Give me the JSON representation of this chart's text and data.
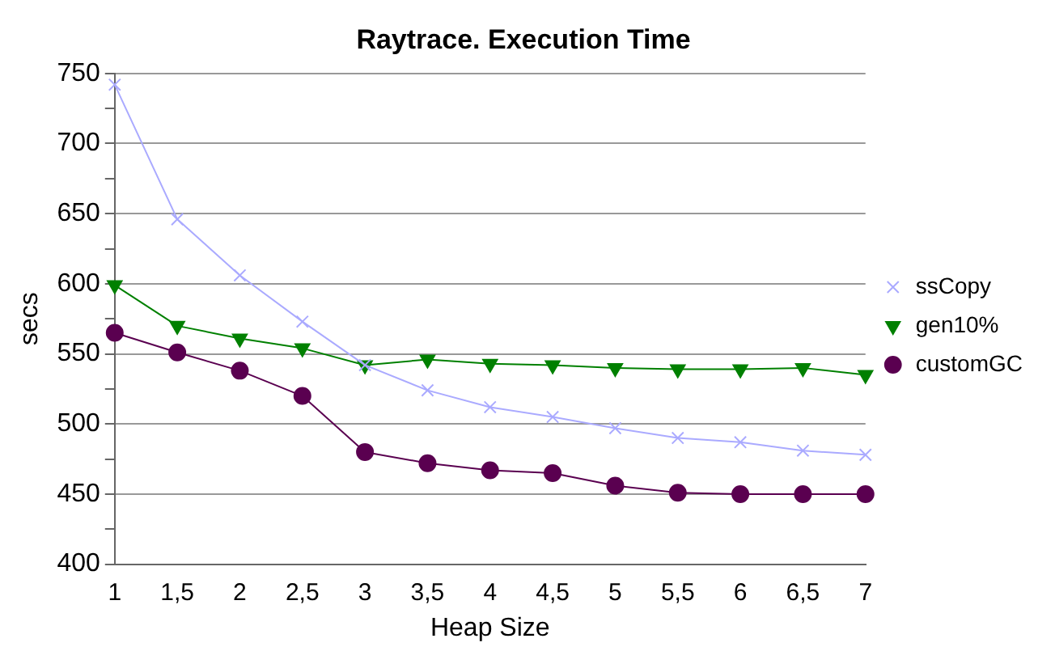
{
  "chart_data": {
    "type": "line",
    "title": "Raytrace. Execution Time",
    "xlabel": "Heap Size",
    "ylabel": "secs",
    "categories": [
      "1",
      "1,5",
      "2",
      "2,5",
      "3",
      "3,5",
      "4",
      "4,5",
      "5",
      "5,5",
      "6",
      "6,5",
      "7"
    ],
    "series": [
      {
        "name": "ssCopy",
        "color": "#aaaaff",
        "marker": "cross",
        "values": [
          742,
          646,
          606,
          573,
          542,
          524,
          512,
          505,
          497,
          490,
          487,
          481,
          478
        ]
      },
      {
        "name": "gen10%",
        "color": "#008000",
        "marker": "triangle",
        "values": [
          599,
          570,
          561,
          554,
          542,
          546,
          543,
          542,
          540,
          539,
          539,
          540,
          535
        ]
      },
      {
        "name": "customGC",
        "color": "#5a0050",
        "marker": "circle",
        "values": [
          565,
          551,
          538,
          520,
          480,
          472,
          467,
          465,
          456,
          451,
          450,
          450,
          450
        ]
      }
    ],
    "ylim": [
      400,
      750
    ],
    "yticks": [
      400,
      {
        "value": 425,
        "label": null
      },
      450,
      {
        "value": 475,
        "label": null
      },
      500,
      {
        "value": 525,
        "label": null
      },
      550,
      {
        "value": 575,
        "label": null
      },
      600,
      {
        "value": 625,
        "label": null
      },
      650,
      {
        "value": 675,
        "label": null
      },
      700,
      {
        "value": 725,
        "label": null
      },
      750
    ],
    "grid": "y",
    "legend": "right",
    "line_style": "solid"
  }
}
